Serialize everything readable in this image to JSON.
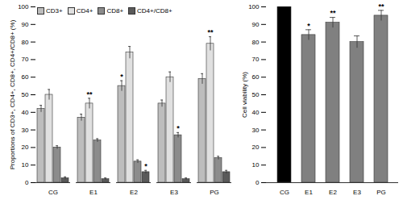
{
  "chart_data": [
    {
      "type": "bar",
      "ylabel": "Proportions of CD3+, CD4+, CD8+, CD4+/CD8+ (%)",
      "categories": [
        "CG",
        "E1",
        "E2",
        "E3",
        "PG"
      ],
      "series": [
        {
          "name": "CD3+",
          "color": "#bdbdbd",
          "values": [
            42,
            37,
            55,
            45,
            59
          ],
          "errors": [
            2,
            2,
            3,
            2,
            3
          ],
          "significance": [
            null,
            null,
            "*",
            null,
            null
          ]
        },
        {
          "name": "CD4+",
          "color": "#e0e0e0",
          "values": [
            50,
            45,
            74,
            60,
            79
          ],
          "errors": [
            3,
            3,
            3.5,
            3,
            4
          ],
          "significance": [
            null,
            "**",
            null,
            null,
            "**"
          ]
        },
        {
          "name": "CD8+",
          "color": "#8c8c8c",
          "values": [
            20,
            24,
            12,
            27,
            14
          ],
          "errors": [
            1,
            1,
            1,
            1.5,
            1
          ],
          "significance": [
            null,
            null,
            null,
            "*",
            null
          ]
        },
        {
          "name": "CD4+/CD8+",
          "color": "#5a5a5a",
          "values": [
            2.5,
            2,
            6,
            2,
            6
          ],
          "errors": [
            0.8,
            0.7,
            1,
            0.7,
            1
          ],
          "significance": [
            null,
            null,
            "*",
            null,
            null
          ]
        }
      ],
      "ylim": [
        0,
        100
      ],
      "yticks": [
        0,
        10,
        20,
        30,
        40,
        50,
        60,
        70,
        80,
        90,
        100
      ],
      "legend": "top-left"
    },
    {
      "type": "bar",
      "ylabel": "Cell viability (%)",
      "categories": [
        "CG",
        "E1",
        "E2",
        "E3",
        "PG"
      ],
      "values": [
        100,
        84,
        91,
        80,
        95
      ],
      "errors": [
        0,
        3,
        3,
        3.5,
        3
      ],
      "significance": [
        null,
        "*",
        "**",
        null,
        "**"
      ],
      "colors": [
        "#000000",
        "#808080",
        "#808080",
        "#808080",
        "#808080"
      ],
      "ylim": [
        0,
        100
      ],
      "yticks": [
        0,
        10,
        20,
        30,
        40,
        50,
        60,
        70,
        80,
        90,
        100
      ]
    }
  ]
}
